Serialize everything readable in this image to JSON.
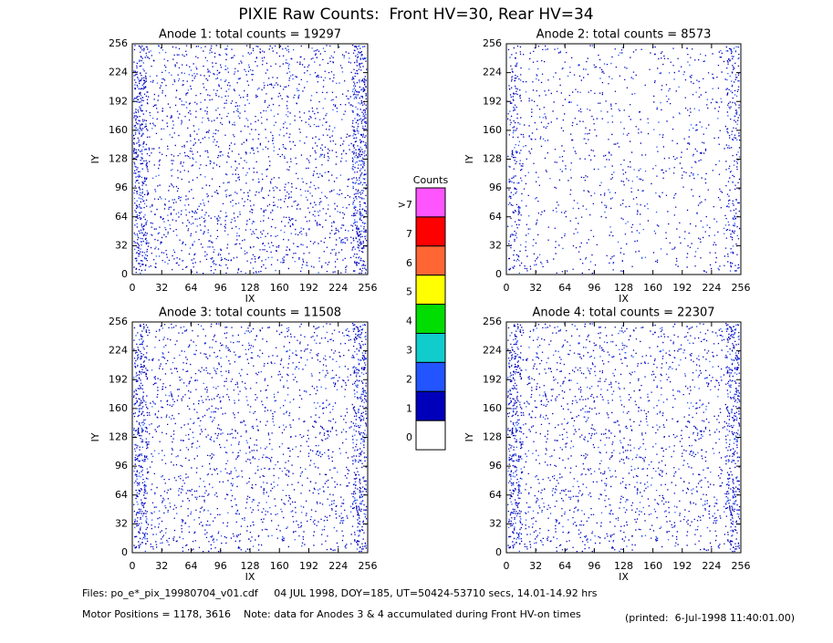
{
  "title": "PIXIE Raw Counts:  Front HV=30, Rear HV=34",
  "footer": {
    "files": "Files: po_e*_pix_19980704_v01.cdf     04 JUL 1998, DOY=185, UT=50424-53710 secs, 14.01-14.92 hrs",
    "motor": "Motor Positions = 1178, 3616    Note: data for Anodes 3 & 4 accumulated during Front HV-on times",
    "printed": "(printed:  6-Jul-1998 11:40:01.00)"
  },
  "colorbar": {
    "title": "Counts",
    "labels": [
      ">7",
      "7",
      "6",
      "5",
      "4",
      "3",
      "2",
      "1",
      "0"
    ],
    "colors": [
      "#ff55ff",
      "#ff0000",
      "#ff6633",
      "#ffff00",
      "#00dd00",
      "#11cccc",
      "#2255ff",
      "#0000bb",
      "#ffffff"
    ]
  },
  "chart_data": [
    {
      "type": "heatmap",
      "title": "Anode 1: total counts = 19297",
      "xlabel": "IX",
      "ylabel": "IY",
      "xlim": [
        0,
        256
      ],
      "ylim": [
        0,
        256
      ],
      "xticks": [
        0,
        32,
        64,
        96,
        128,
        160,
        192,
        224,
        256
      ],
      "yticks": [
        0,
        32,
        64,
        96,
        128,
        160,
        192,
        224,
        256
      ]
    },
    {
      "type": "heatmap",
      "title": "Anode 2: total counts = 8573",
      "xlabel": "IX",
      "ylabel": "IY",
      "xlim": [
        0,
        256
      ],
      "ylim": [
        0,
        256
      ],
      "xticks": [
        0,
        32,
        64,
        96,
        128,
        160,
        192,
        224,
        256
      ],
      "yticks": [
        0,
        32,
        64,
        96,
        128,
        160,
        192,
        224,
        256
      ]
    },
    {
      "type": "heatmap",
      "title": "Anode 3: total counts = 11508",
      "xlabel": "IX",
      "ylabel": "IY",
      "xlim": [
        0,
        256
      ],
      "ylim": [
        0,
        256
      ],
      "xticks": [
        0,
        32,
        64,
        96,
        128,
        160,
        192,
        224,
        256
      ],
      "yticks": [
        0,
        32,
        64,
        96,
        128,
        160,
        192,
        224,
        256
      ]
    },
    {
      "type": "heatmap",
      "title": "Anode 4: total counts = 22307",
      "xlabel": "IX",
      "ylabel": "IY",
      "xlim": [
        0,
        256
      ],
      "ylim": [
        0,
        256
      ],
      "xticks": [
        0,
        32,
        64,
        96,
        128,
        160,
        192,
        224,
        256
      ],
      "yticks": [
        0,
        32,
        64,
        96,
        128,
        160,
        192,
        224,
        256
      ]
    }
  ]
}
